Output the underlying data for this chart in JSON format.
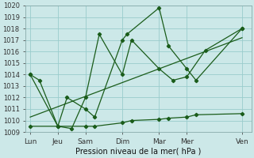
{
  "background_color": "#cce8e8",
  "grid_color": "#99cccc",
  "line_color": "#1a5c1a",
  "xlabel": "Pression niveau de la mer( hPa )",
  "ylim": [
    1009,
    1020
  ],
  "yticks": [
    1009,
    1010,
    1011,
    1012,
    1013,
    1014,
    1015,
    1016,
    1017,
    1018,
    1019,
    1020
  ],
  "day_labels": [
    "Lun",
    "Jeu",
    "Sam",
    "Dim",
    "Mar",
    "Mer",
    "Ven"
  ],
  "day_positions": [
    0,
    3,
    6,
    10,
    14,
    17,
    23
  ],
  "xlim": [
    -0.5,
    24
  ],
  "main_x": [
    0,
    1,
    3,
    4,
    6,
    7,
    10,
    10.5,
    14,
    15,
    17,
    18,
    23
  ],
  "main_y": [
    1014,
    1013.5,
    1009.5,
    1012,
    1011,
    1010.3,
    1017,
    1017.5,
    1019.8,
    1016.5,
    1014.5,
    1013.5,
    1018
  ],
  "jagged2_x": [
    0,
    3,
    4.5,
    6,
    7.5,
    10,
    11,
    14,
    15.5,
    17,
    19,
    23
  ],
  "jagged2_y": [
    1014,
    1009.5,
    1009.3,
    1012,
    1017.5,
    1014,
    1017,
    1014.5,
    1013.5,
    1013.8,
    1016.1,
    1018
  ],
  "trend_x": [
    0,
    23
  ],
  "trend_y": [
    1010.3,
    1017.2
  ],
  "flat_x": [
    0,
    6,
    7,
    10,
    11,
    14,
    15,
    17,
    18,
    23
  ],
  "flat_y": [
    1009.5,
    1009.5,
    1009.5,
    1009.8,
    1010.0,
    1010.1,
    1010.2,
    1010.3,
    1010.5,
    1010.6
  ]
}
